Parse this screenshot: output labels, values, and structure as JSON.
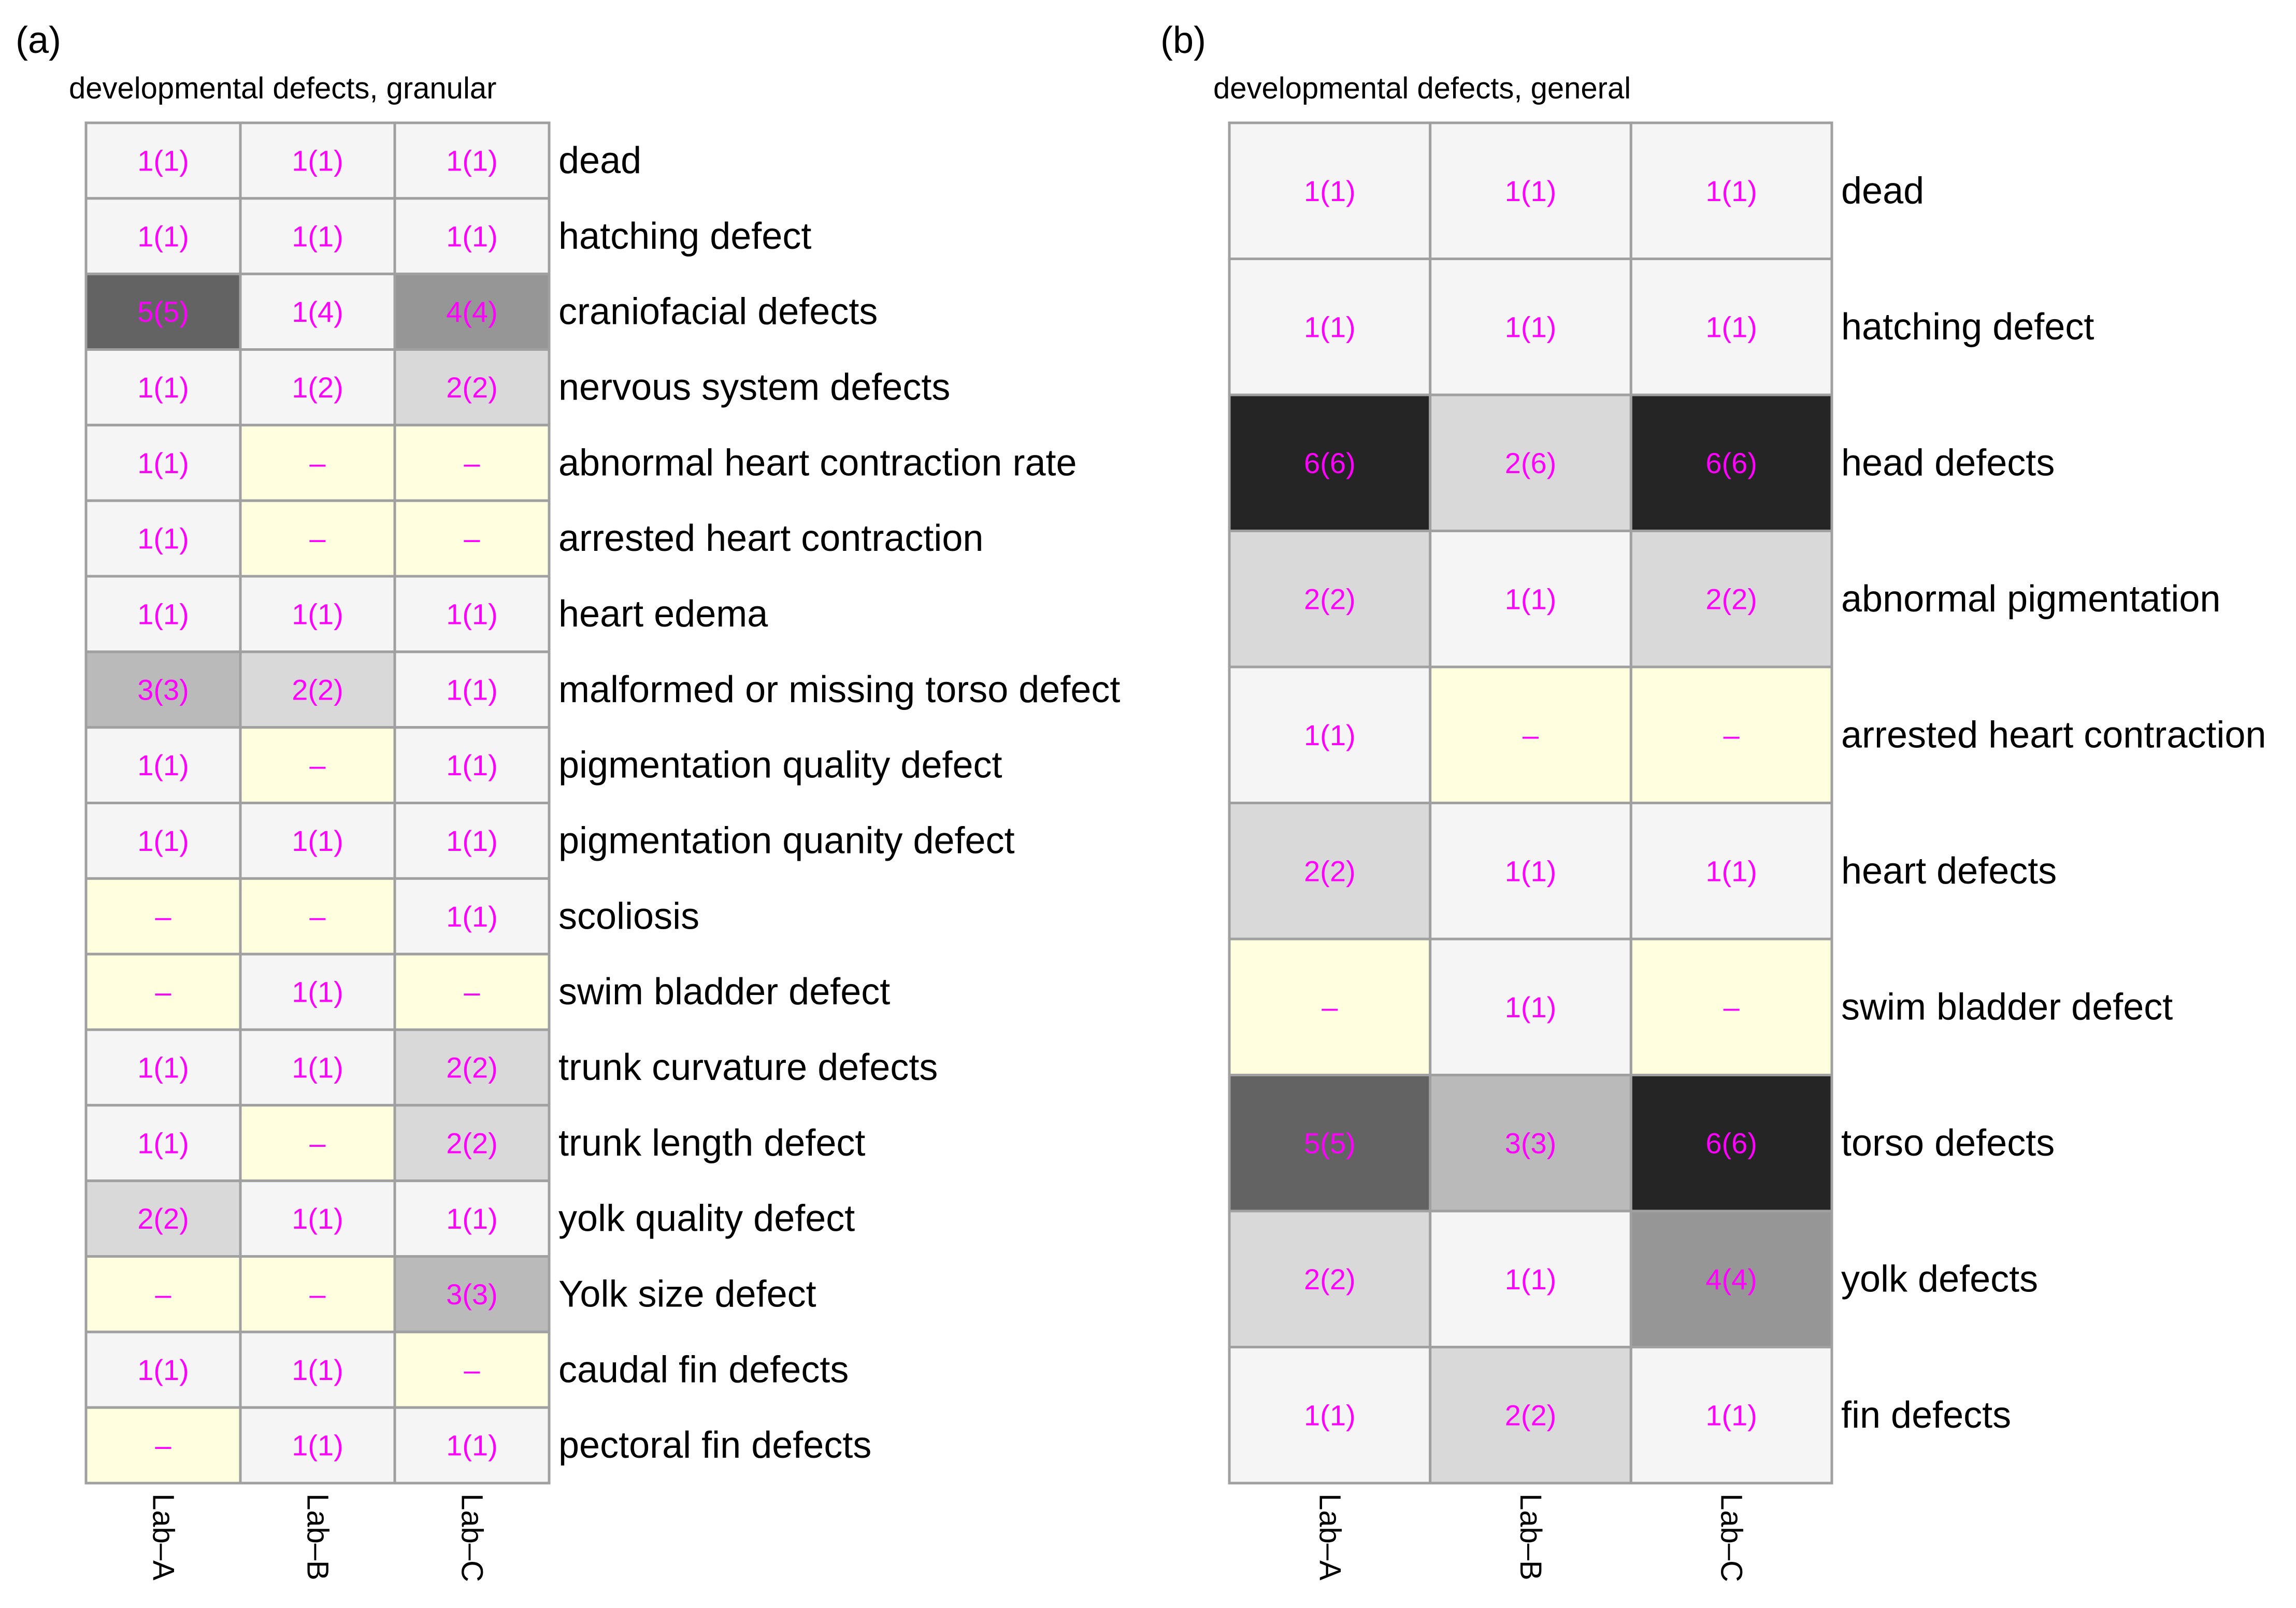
{
  "colors": {
    "missing": "#ffffe0",
    "text": "#ff00ff",
    "border": "#a0a0a0",
    "levels": {
      "1": "#f5f5f5",
      "2": "#d9d9d9",
      "3": "#bababa",
      "4": "#969696",
      "5": "#636363",
      "6": "#252525"
    }
  },
  "chart_data": [
    {
      "type": "heatmap",
      "panel_label": "(a)",
      "title": "developmental defects, granular",
      "columns": [
        "Lab–A",
        "Lab–B",
        "Lab–C"
      ],
      "rows": [
        {
          "label": "dead",
          "cells": [
            {
              "text": "1(1)",
              "value": 1
            },
            {
              "text": "1(1)",
              "value": 1
            },
            {
              "text": "1(1)",
              "value": 1
            }
          ]
        },
        {
          "label": "hatching defect",
          "cells": [
            {
              "text": "1(1)",
              "value": 1
            },
            {
              "text": "1(1)",
              "value": 1
            },
            {
              "text": "1(1)",
              "value": 1
            }
          ]
        },
        {
          "label": "craniofacial defects",
          "cells": [
            {
              "text": "5(5)",
              "value": 5
            },
            {
              "text": "1(4)",
              "value": 1
            },
            {
              "text": "4(4)",
              "value": 4
            }
          ]
        },
        {
          "label": "nervous system defects",
          "cells": [
            {
              "text": "1(1)",
              "value": 1
            },
            {
              "text": "1(2)",
              "value": 1
            },
            {
              "text": "2(2)",
              "value": 2
            }
          ]
        },
        {
          "label": "abnormal heart contraction rate",
          "cells": [
            {
              "text": "1(1)",
              "value": 1
            },
            {
              "text": "–",
              "value": null
            },
            {
              "text": "–",
              "value": null
            }
          ]
        },
        {
          "label": "arrested heart contraction",
          "cells": [
            {
              "text": "1(1)",
              "value": 1
            },
            {
              "text": "–",
              "value": null
            },
            {
              "text": "–",
              "value": null
            }
          ]
        },
        {
          "label": "heart edema",
          "cells": [
            {
              "text": "1(1)",
              "value": 1
            },
            {
              "text": "1(1)",
              "value": 1
            },
            {
              "text": "1(1)",
              "value": 1
            }
          ]
        },
        {
          "label": "malformed or missing torso defect",
          "cells": [
            {
              "text": "3(3)",
              "value": 3
            },
            {
              "text": "2(2)",
              "value": 2
            },
            {
              "text": "1(1)",
              "value": 1
            }
          ]
        },
        {
          "label": "pigmentation quality defect",
          "cells": [
            {
              "text": "1(1)",
              "value": 1
            },
            {
              "text": "–",
              "value": null
            },
            {
              "text": "1(1)",
              "value": 1
            }
          ]
        },
        {
          "label": "pigmentation quanity defect",
          "cells": [
            {
              "text": "1(1)",
              "value": 1
            },
            {
              "text": "1(1)",
              "value": 1
            },
            {
              "text": "1(1)",
              "value": 1
            }
          ]
        },
        {
          "label": "scoliosis",
          "cells": [
            {
              "text": "–",
              "value": null
            },
            {
              "text": "–",
              "value": null
            },
            {
              "text": "1(1)",
              "value": 1
            }
          ]
        },
        {
          "label": "swim bladder defect",
          "cells": [
            {
              "text": "–",
              "value": null
            },
            {
              "text": "1(1)",
              "value": 1
            },
            {
              "text": "–",
              "value": null
            }
          ]
        },
        {
          "label": "trunk curvature defects",
          "cells": [
            {
              "text": "1(1)",
              "value": 1
            },
            {
              "text": "1(1)",
              "value": 1
            },
            {
              "text": "2(2)",
              "value": 2
            }
          ]
        },
        {
          "label": "trunk length defect",
          "cells": [
            {
              "text": "1(1)",
              "value": 1
            },
            {
              "text": "–",
              "value": null
            },
            {
              "text": "2(2)",
              "value": 2
            }
          ]
        },
        {
          "label": "yolk quality defect",
          "cells": [
            {
              "text": "2(2)",
              "value": 2
            },
            {
              "text": "1(1)",
              "value": 1
            },
            {
              "text": "1(1)",
              "value": 1
            }
          ]
        },
        {
          "label": "Yolk size defect",
          "cells": [
            {
              "text": "–",
              "value": null
            },
            {
              "text": "–",
              "value": null
            },
            {
              "text": "3(3)",
              "value": 3
            }
          ]
        },
        {
          "label": "caudal fin defects",
          "cells": [
            {
              "text": "1(1)",
              "value": 1
            },
            {
              "text": "1(1)",
              "value": 1
            },
            {
              "text": "–",
              "value": null
            }
          ]
        },
        {
          "label": "pectoral fin defects",
          "cells": [
            {
              "text": "–",
              "value": null
            },
            {
              "text": "1(1)",
              "value": 1
            },
            {
              "text": "1(1)",
              "value": 1
            }
          ]
        }
      ]
    },
    {
      "type": "heatmap",
      "panel_label": "(b)",
      "title": "developmental defects, general",
      "columns": [
        "Lab–A",
        "Lab–B",
        "Lab–C"
      ],
      "rows": [
        {
          "label": "dead",
          "cells": [
            {
              "text": "1(1)",
              "value": 1
            },
            {
              "text": "1(1)",
              "value": 1
            },
            {
              "text": "1(1)",
              "value": 1
            }
          ]
        },
        {
          "label": "hatching defect",
          "cells": [
            {
              "text": "1(1)",
              "value": 1
            },
            {
              "text": "1(1)",
              "value": 1
            },
            {
              "text": "1(1)",
              "value": 1
            }
          ]
        },
        {
          "label": "head defects",
          "cells": [
            {
              "text": "6(6)",
              "value": 6
            },
            {
              "text": "2(6)",
              "value": 2
            },
            {
              "text": "6(6)",
              "value": 6
            }
          ]
        },
        {
          "label": "abnormal pigmentation",
          "cells": [
            {
              "text": "2(2)",
              "value": 2
            },
            {
              "text": "1(1)",
              "value": 1
            },
            {
              "text": "2(2)",
              "value": 2
            }
          ]
        },
        {
          "label": "arrested heart contraction",
          "cells": [
            {
              "text": "1(1)",
              "value": 1
            },
            {
              "text": "–",
              "value": null
            },
            {
              "text": "–",
              "value": null
            }
          ]
        },
        {
          "label": "heart defects",
          "cells": [
            {
              "text": "2(2)",
              "value": 2
            },
            {
              "text": "1(1)",
              "value": 1
            },
            {
              "text": "1(1)",
              "value": 1
            }
          ]
        },
        {
          "label": "swim bladder defect",
          "cells": [
            {
              "text": "–",
              "value": null
            },
            {
              "text": "1(1)",
              "value": 1
            },
            {
              "text": "–",
              "value": null
            }
          ]
        },
        {
          "label": "torso defects",
          "cells": [
            {
              "text": "5(5)",
              "value": 5
            },
            {
              "text": "3(3)",
              "value": 3
            },
            {
              "text": "6(6)",
              "value": 6
            }
          ]
        },
        {
          "label": "yolk defects",
          "cells": [
            {
              "text": "2(2)",
              "value": 2
            },
            {
              "text": "1(1)",
              "value": 1
            },
            {
              "text": "4(4)",
              "value": 4
            }
          ]
        },
        {
          "label": "fin defects",
          "cells": [
            {
              "text": "1(1)",
              "value": 1
            },
            {
              "text": "2(2)",
              "value": 2
            },
            {
              "text": "1(1)",
              "value": 1
            }
          ]
        }
      ]
    }
  ]
}
